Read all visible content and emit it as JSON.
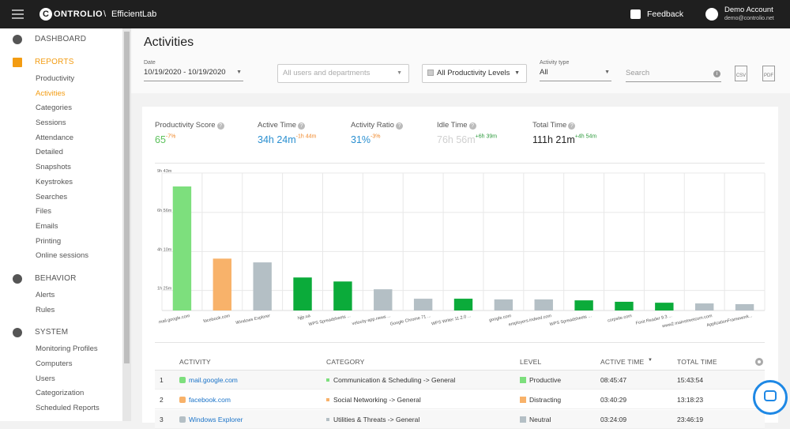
{
  "topbar": {
    "logo_letter": "C",
    "brand": "ONTROLIO",
    "separator": "\\",
    "company": "EfficientLab",
    "feedback": "Feedback",
    "account_name": "Demo Account",
    "account_email": "demo@controlio.net"
  },
  "sidebar": {
    "sections": [
      {
        "title": "DASHBOARD",
        "items": []
      },
      {
        "title": "REPORTS",
        "items": [
          "Productivity",
          "Activities",
          "Categories",
          "Sessions",
          "Attendance",
          "Detailed",
          "Snapshots",
          "Keystrokes",
          "Searches",
          "Files",
          "Emails",
          "Printing",
          "Online sessions"
        ]
      },
      {
        "title": "BEHAVIOR",
        "items": [
          "Alerts",
          "Rules"
        ]
      },
      {
        "title": "SYSTEM",
        "items": [
          "Monitoring Profiles",
          "Computers",
          "Users",
          "Categorization",
          "Scheduled Reports"
        ]
      }
    ]
  },
  "page": {
    "title": "Activities"
  },
  "filters": {
    "date_label": "Date",
    "date_value": "10/19/2020 - 10/19/2020",
    "users": "All users and departments",
    "levels": "All Productivity Levels",
    "activity_type_label": "Activity type",
    "activity_type": "All",
    "search": "Search",
    "csv": "CSV",
    "pdf": "PDF"
  },
  "stats": [
    {
      "label": "Productivity Score",
      "value": "65",
      "delta": "-7%",
      "color": "#5cc15c"
    },
    {
      "label": "Active Time",
      "value": "34h 24m",
      "delta": "-1h 44m",
      "color": "#2a8fd0"
    },
    {
      "label": "Activity Ratio",
      "value": "31%",
      "delta": "-3%",
      "color": "#2a8fd0"
    },
    {
      "label": "Idle Time",
      "value": "76h 56m",
      "delta": "+6h 39m",
      "color": "#d0d0d0"
    },
    {
      "label": "Total Time",
      "value": "111h 21m",
      "delta": "+4h 54m",
      "color": "#222222"
    }
  ],
  "chart_data": {
    "type": "bar",
    "categories": [
      "mail.google.com",
      "facebook.com",
      "Windows Explorer",
      "hjjp.ua",
      "WPS Spreadsheets ...",
      "velocity-app.news ...",
      "Google Chrome 71 ...",
      "WPS Writer 11.2.0 ...",
      "google.com",
      "employers.indeed.com",
      "WPS Spreadsheets ...",
      "corpsite.com",
      "Foxit Reader 9.3 ...",
      "www2.mainstreetcom.com",
      "ApplicationFramework..."
    ],
    "values": [
      526,
      220,
      204,
      140,
      123,
      90,
      50,
      50,
      47,
      47,
      43,
      37,
      33,
      30,
      27
    ],
    "colors": [
      "#7ddf7d",
      "#f8b26a",
      "#b4bfc5",
      "#0bab3a",
      "#0bab3a",
      "#b4bfc5",
      "#b4bfc5",
      "#0bab3a",
      "#b4bfc5",
      "#b4bfc5",
      "#0bab3a",
      "#0bab3a",
      "#0bab3a",
      "#b4bfc5",
      "#b4bfc5"
    ],
    "ylim": [
      0,
      583
    ],
    "yticks": [
      {
        "value": 85,
        "label": "1h 25m"
      },
      {
        "value": 250,
        "label": "4h 10m"
      },
      {
        "value": 416,
        "label": "6h 56m"
      },
      {
        "value": 583,
        "label": "9h 43m"
      }
    ],
    "grid": true
  },
  "table": {
    "headers": [
      "ACTIVITY",
      "CATEGORY",
      "LEVEL",
      "ACTIVE TIME",
      "TOTAL TIME"
    ],
    "rows": [
      [
        "1",
        "mail.google.com",
        "Communication & Scheduling -> General",
        "Productive",
        "08:45:47",
        "15:43:54"
      ],
      [
        "2",
        "facebook.com",
        "Social Networking -> General",
        "Distracting",
        "03:40:29",
        "13:18:23"
      ],
      [
        "3",
        "Windows Explorer",
        "Utilities & Threats -> General",
        "Neutral",
        "03:24:09",
        "23:46:19"
      ]
    ],
    "level_colors": [
      "#7ddf7d",
      "#f8b26a",
      "#b4bfc5"
    ]
  }
}
